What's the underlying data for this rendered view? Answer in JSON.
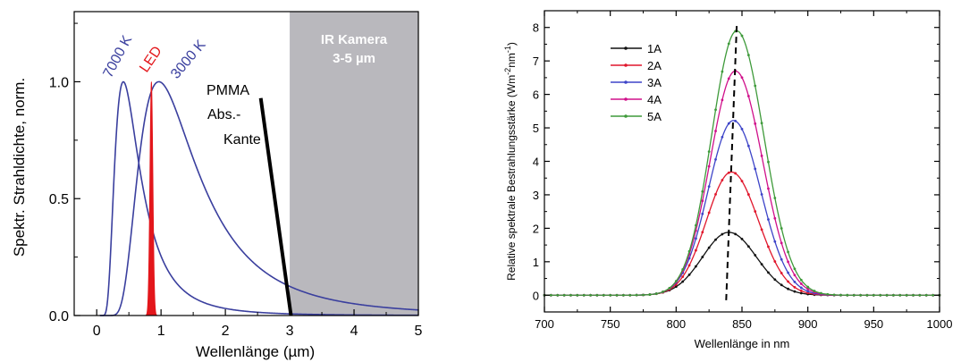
{
  "colors": {
    "blue_curve": "#3a3f9e",
    "led": "#e3161b",
    "ir_band": "#b9b8bd",
    "ir_text": "#ffffff",
    "axis": "#000000",
    "right_series": [
      "#111111",
      "#e0162b",
      "#3d44c8",
      "#d0108a",
      "#3e9a3a"
    ]
  },
  "chart_data": [
    {
      "type": "line",
      "xlabel": "Wellenlänge (µm)",
      "ylabel": "Spektr. Strahldichte, norm.",
      "xlim": [
        -0.35,
        5
      ],
      "ylim": [
        0,
        1.3
      ],
      "xticks": [
        {
          "value": 0,
          "label": "0"
        },
        {
          "value": 1,
          "label": "1"
        },
        {
          "value": 2,
          "label": "2"
        },
        {
          "value": 3,
          "label": "3"
        },
        {
          "value": 4,
          "label": "4"
        },
        {
          "value": 5,
          "label": "5"
        }
      ],
      "yticks": [
        {
          "value": 0.0,
          "label": "0.0"
        },
        {
          "value": 0.5,
          "label": "0.5"
        },
        {
          "value": 1.0,
          "label": "1.0"
        }
      ],
      "series": [
        {
          "name": "7000 K",
          "temperature_K": 7000
        },
        {
          "name": "3000 K",
          "temperature_K": 3000
        }
      ],
      "led": {
        "name": "LED",
        "center": 0.85,
        "width": 0.06,
        "peak": 1.0
      },
      "ir_band": {
        "label_line1": "IR Kamera",
        "label_line2": "3-5 µm",
        "from": 3,
        "to": 5
      },
      "pmma": {
        "label_lines": [
          "PMMA",
          "Abs.-",
          "Kante"
        ],
        "x_start": 2.55,
        "y_start": 0.93,
        "x_end": 3.02,
        "y_end": 0.0
      },
      "grid": false
    },
    {
      "type": "line",
      "xlabel": "Wellenlänge in nm",
      "ylabel": "Relative spektrale Bestrahlungsstärke (Wm",
      "ylabel_sup1": "-2",
      "ylabel_mid": "nm",
      "ylabel_sup2": "-1",
      "ylabel_end": ")",
      "xlim": [
        700,
        1000
      ],
      "ylim": [
        -0.5,
        8.5
      ],
      "xticks": [
        700,
        750,
        800,
        850,
        900,
        950,
        1000
      ],
      "yticks": [
        0,
        1,
        2,
        3,
        4,
        5,
        6,
        7,
        8
      ],
      "series": [
        {
          "name": "1A",
          "peak": 1.88,
          "center": 840,
          "sigma_left": 20,
          "sigma_right": 21
        },
        {
          "name": "2A",
          "peak": 3.68,
          "center": 842,
          "sigma_left": 19,
          "sigma_right": 20.5
        },
        {
          "name": "3A",
          "peak": 5.22,
          "center": 843.5,
          "sigma_left": 19,
          "sigma_right": 20.5
        },
        {
          "name": "4A",
          "peak": 6.7,
          "center": 845,
          "sigma_left": 19,
          "sigma_right": 20.5
        },
        {
          "name": "5A",
          "peak": 7.9,
          "center": 846,
          "sigma_left": 19,
          "sigma_right": 20.5
        }
      ],
      "peak_line": {
        "x_bottom": 838,
        "y_bottom": -0.15,
        "x_top": 846,
        "y_top": 8.05
      },
      "legend_position": "top-left",
      "grid": false
    }
  ]
}
